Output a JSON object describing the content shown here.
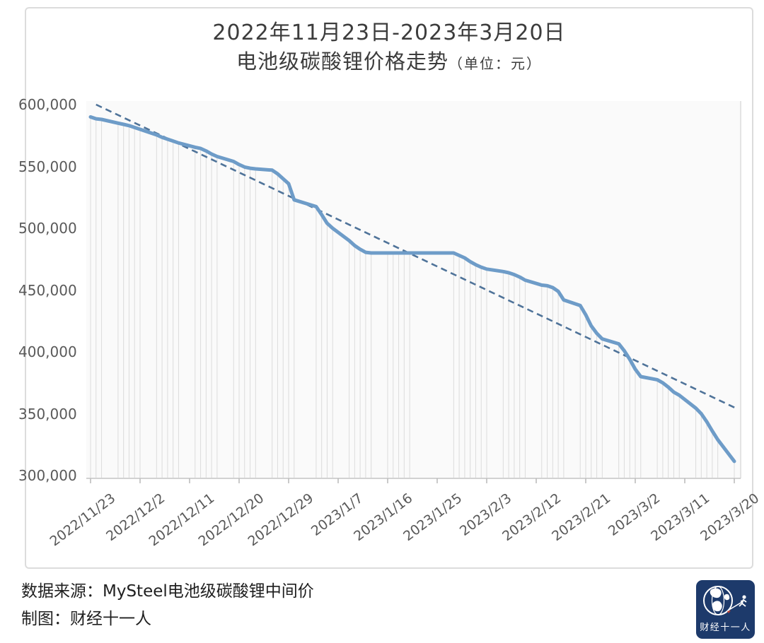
{
  "card": {
    "title_line1": "2022年11月23日-2023年3月20日",
    "title_line2": "电池级碳酸锂价格走势",
    "title_unit": "（单位：元）"
  },
  "footer": {
    "source_line": "数据来源：MySteel电池级碳酸锂中间价",
    "credit_line": "制图：财经十一人",
    "logo_text": "财经十一人",
    "logo_bg_color": "#1d3a6b"
  },
  "chart_data": {
    "type": "line",
    "title": "2022年11月23日-2023年3月20日 电池级碳酸锂价格走势",
    "unit": "元",
    "xlabel": "",
    "ylabel": "",
    "ylim": [
      300000,
      600000
    ],
    "y_tick_step": 50000,
    "y_tick_values": [
      600000,
      550000,
      500000,
      450000,
      400000,
      350000,
      300000
    ],
    "y_tick_labels": [
      "600,000",
      "550,000",
      "500,000",
      "450,000",
      "400,000",
      "350,000",
      "300,000"
    ],
    "x_tick_labels": [
      "2022/11/23",
      "2022/12/2",
      "2022/12/11",
      "2022/12/20",
      "2022/12/29",
      "2023/1/7",
      "2023/1/16",
      "2023/1/25",
      "2023/2/3",
      "2023/2/12",
      "2023/2/21",
      "2023/3/2",
      "2023/3/11",
      "2023/3/20"
    ],
    "x_start_date": "2022/11/23",
    "x_end_date": "2023/3/20",
    "x_range_days": 117,
    "grid": "vertical dropline under every data point",
    "legend": "none",
    "series": [
      {
        "name": "电池级碳酸锂中间价",
        "points": [
          [
            "2022/11/23",
            590000
          ],
          [
            "2022/11/24",
            588500
          ],
          [
            "2022/11/25",
            588000
          ],
          [
            "2022/11/28",
            585000
          ],
          [
            "2022/11/29",
            584000
          ],
          [
            "2022/11/30",
            583000
          ],
          [
            "2022/12/1",
            581500
          ],
          [
            "2022/12/2",
            580000
          ],
          [
            "2022/12/5",
            575500
          ],
          [
            "2022/12/6",
            573500
          ],
          [
            "2022/12/7",
            572000
          ],
          [
            "2022/12/8",
            570500
          ],
          [
            "2022/12/9",
            569000
          ],
          [
            "2022/12/12",
            565500
          ],
          [
            "2022/12/13",
            564500
          ],
          [
            "2022/12/14",
            562500
          ],
          [
            "2022/12/15",
            560000
          ],
          [
            "2022/12/16",
            558000
          ],
          [
            "2022/12/19",
            554000
          ],
          [
            "2022/12/20",
            551500
          ],
          [
            "2022/12/21",
            549500
          ],
          [
            "2022/12/22",
            548500
          ],
          [
            "2022/12/23",
            548000
          ],
          [
            "2022/12/26",
            547000
          ],
          [
            "2022/12/27",
            544000
          ],
          [
            "2022/12/28",
            540000
          ],
          [
            "2022/12/29",
            536000
          ],
          [
            "2022/12/30",
            523000
          ],
          [
            "2023/1/3",
            517500
          ],
          [
            "2023/1/4",
            511000
          ],
          [
            "2023/1/5",
            504000
          ],
          [
            "2023/1/6",
            500000
          ],
          [
            "2023/1/9",
            490000
          ],
          [
            "2023/1/10",
            486000
          ],
          [
            "2023/1/11",
            483000
          ],
          [
            "2023/1/12",
            480500
          ],
          [
            "2023/1/13",
            480000
          ],
          [
            "2023/1/16",
            480000
          ],
          [
            "2023/1/17",
            480000
          ],
          [
            "2023/1/18",
            480000
          ],
          [
            "2023/1/19",
            480000
          ],
          [
            "2023/1/20",
            480000
          ],
          [
            "2023/1/28",
            480000
          ],
          [
            "2023/1/29",
            478000
          ],
          [
            "2023/1/30",
            476000
          ],
          [
            "2023/1/31",
            473000
          ],
          [
            "2023/2/1",
            470500
          ],
          [
            "2023/2/2",
            468500
          ],
          [
            "2023/2/3",
            467000
          ],
          [
            "2023/2/6",
            465000
          ],
          [
            "2023/2/7",
            464000
          ],
          [
            "2023/2/8",
            462500
          ],
          [
            "2023/2/9",
            460500
          ],
          [
            "2023/2/10",
            458000
          ],
          [
            "2023/2/13",
            454000
          ],
          [
            "2023/2/14",
            453500
          ],
          [
            "2023/2/15",
            452000
          ],
          [
            "2023/2/16",
            449000
          ],
          [
            "2023/2/17",
            442000
          ],
          [
            "2023/2/20",
            437500
          ],
          [
            "2023/2/21",
            430000
          ],
          [
            "2023/2/22",
            421000
          ],
          [
            "2023/2/23",
            415000
          ],
          [
            "2023/2/24",
            410500
          ],
          [
            "2023/2/27",
            406500
          ],
          [
            "2023/2/28",
            401000
          ],
          [
            "2023/3/1",
            394000
          ],
          [
            "2023/3/2",
            386000
          ],
          [
            "2023/3/3",
            380000
          ],
          [
            "2023/3/6",
            377500
          ],
          [
            "2023/3/7",
            375000
          ],
          [
            "2023/3/8",
            371500
          ],
          [
            "2023/3/9",
            367500
          ],
          [
            "2023/3/10",
            365000
          ],
          [
            "2023/3/13",
            354500
          ],
          [
            "2023/3/14",
            350000
          ],
          [
            "2023/3/15",
            343500
          ],
          [
            "2023/3/16",
            336000
          ],
          [
            "2023/3/17",
            329000
          ],
          [
            "2023/3/20",
            311500
          ]
        ]
      }
    ],
    "trendline": {
      "style": "dashed",
      "start_date": "2022/11/24",
      "start_value": 600000,
      "end_date": "2023/3/20",
      "end_value": 354000
    },
    "colors": {
      "price_line": "#6e9cc8",
      "trend_line": "#4f7399",
      "dropline": "#dcdcdc",
      "axis": "#c4c4c4",
      "tick_mark": "#b9b9b9",
      "tick_label": "#595959",
      "plot_bg": "#fafafa",
      "title": "#3c3c3c"
    }
  }
}
